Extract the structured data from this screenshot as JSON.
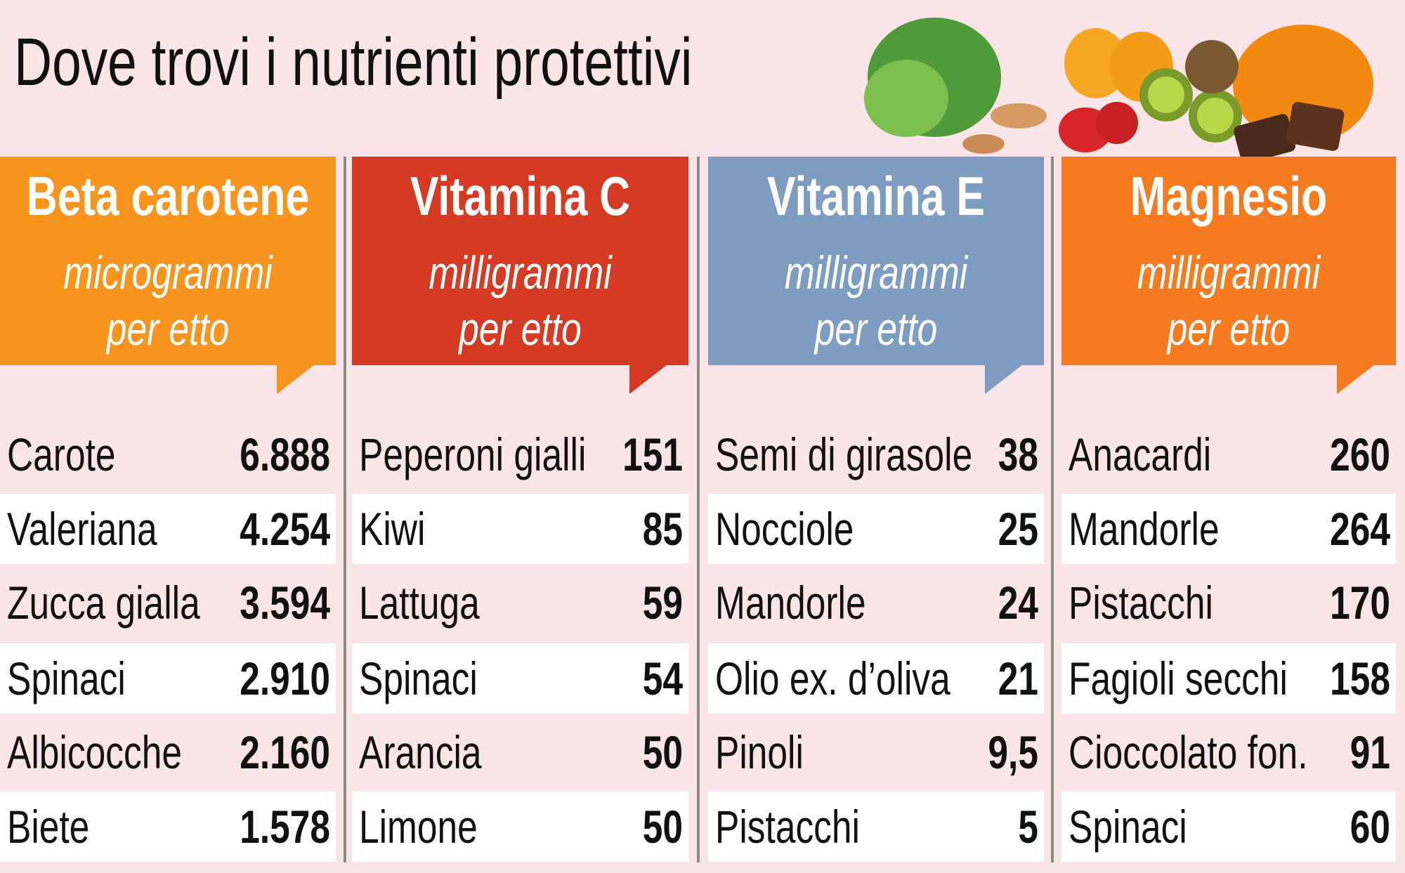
{
  "header": {
    "title": "Dove trovi i nutrienti protettivi"
  },
  "columns": [
    {
      "title": "Beta carotene",
      "unit": [
        "microgrammi",
        "per etto"
      ],
      "color": "#f7941d",
      "rows": [
        [
          "Carote",
          "6.888"
        ],
        [
          "Valeriana",
          "4.254"
        ],
        [
          "Zucca gialla",
          "3.594"
        ],
        [
          "Spinaci",
          "2.910"
        ],
        [
          "Albicocche",
          "2.160"
        ],
        [
          "Biete",
          "1.578"
        ]
      ]
    },
    {
      "title": "Vitamina C",
      "unit": [
        "milligrammi",
        "per etto"
      ],
      "color": "#d53a24",
      "rows": [
        [
          "Peperoni gialli",
          "151"
        ],
        [
          "Kiwi",
          "85"
        ],
        [
          "Lattuga",
          "59"
        ],
        [
          "Spinaci",
          "54"
        ],
        [
          "Arancia",
          "50"
        ],
        [
          "Limone",
          "50"
        ]
      ]
    },
    {
      "title": "Vitamina E",
      "unit": [
        "milligrammi",
        "per etto"
      ],
      "color": "#7e9cc0",
      "rows": [
        [
          "Semi di girasole",
          "38"
        ],
        [
          "Nocciole",
          "25"
        ],
        [
          "Mandorle",
          "24"
        ],
        [
          "Olio ex. d’oliva",
          "21"
        ],
        [
          "Pinoli",
          "9,5"
        ],
        [
          "Pistacchi",
          "5"
        ]
      ]
    },
    {
      "title": "Magnesio",
      "unit": [
        "milligrammi",
        "per etto"
      ],
      "color": "#f57a20",
      "rows": [
        [
          "Anacardi",
          "260"
        ],
        [
          "Mandorle",
          "264"
        ],
        [
          "Pistacchi",
          "170"
        ],
        [
          "Fagioli secchi",
          "158"
        ],
        [
          "Cioccolato fon.",
          "91"
        ],
        [
          "Spinaci",
          "60"
        ]
      ]
    }
  ]
}
